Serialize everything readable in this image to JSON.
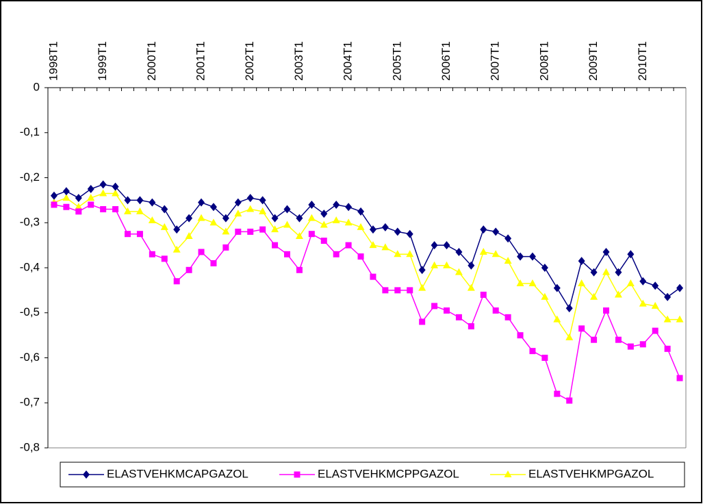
{
  "chart_data": {
    "type": "line",
    "categories": [
      "1998T1",
      null,
      null,
      null,
      "1999T1",
      null,
      null,
      null,
      "2000T1",
      null,
      null,
      null,
      "2001T1",
      null,
      null,
      null,
      "2002T1",
      null,
      null,
      null,
      "2003T1",
      null,
      null,
      null,
      "2004T1",
      null,
      null,
      null,
      "2005T1",
      null,
      null,
      null,
      "2006T1",
      null,
      null,
      null,
      "2007T1",
      null,
      null,
      null,
      "2008T1",
      null,
      null,
      null,
      "2009T1",
      null,
      null,
      null,
      "2010T1",
      null,
      null,
      null
    ],
    "series": [
      {
        "name": "ELASTVEHKMCAPGAZOL",
        "color": "#000080",
        "marker": "diamond",
        "values": [
          -0.24,
          -0.23,
          -0.245,
          -0.225,
          -0.215,
          -0.22,
          -0.25,
          -0.25,
          -0.255,
          -0.27,
          -0.315,
          -0.29,
          -0.255,
          -0.265,
          -0.29,
          -0.255,
          -0.245,
          -0.25,
          -0.29,
          -0.27,
          -0.29,
          -0.26,
          -0.28,
          -0.26,
          -0.265,
          -0.275,
          -0.315,
          -0.31,
          -0.32,
          -0.325,
          -0.405,
          -0.35,
          -0.35,
          -0.365,
          -0.395,
          -0.315,
          -0.32,
          -0.335,
          -0.375,
          -0.375,
          -0.4,
          -0.445,
          -0.49,
          -0.385,
          -0.41,
          -0.365,
          -0.41,
          -0.37,
          -0.43,
          -0.44,
          -0.465,
          -0.445
        ]
      },
      {
        "name": "ELASTVEHKMCPPGAZOL",
        "color": "#ff00ff",
        "marker": "square",
        "values": [
          -0.26,
          -0.265,
          -0.275,
          -0.26,
          -0.27,
          -0.27,
          -0.325,
          -0.325,
          -0.37,
          -0.38,
          -0.43,
          -0.405,
          -0.365,
          -0.39,
          -0.355,
          -0.32,
          -0.32,
          -0.315,
          -0.35,
          -0.37,
          -0.405,
          -0.325,
          -0.34,
          -0.37,
          -0.35,
          -0.375,
          -0.42,
          -0.45,
          -0.45,
          -0.45,
          -0.52,
          -0.485,
          -0.495,
          -0.51,
          -0.53,
          -0.46,
          -0.495,
          -0.51,
          -0.55,
          -0.585,
          -0.6,
          -0.68,
          -0.695,
          -0.535,
          -0.56,
          -0.495,
          -0.56,
          -0.575,
          -0.57,
          -0.54,
          -0.58,
          -0.645
        ]
      },
      {
        "name": "ELASTVEHKMPGAZOL",
        "color": "#ffff00",
        "marker": "triangle",
        "values": [
          -0.255,
          -0.245,
          -0.265,
          -0.245,
          -0.235,
          -0.235,
          -0.275,
          -0.275,
          -0.295,
          -0.31,
          -0.36,
          -0.33,
          -0.29,
          -0.3,
          -0.32,
          -0.28,
          -0.27,
          -0.275,
          -0.315,
          -0.305,
          -0.33,
          -0.29,
          -0.305,
          -0.295,
          -0.3,
          -0.31,
          -0.35,
          -0.355,
          -0.37,
          -0.37,
          -0.445,
          -0.395,
          -0.395,
          -0.41,
          -0.445,
          -0.365,
          -0.37,
          -0.385,
          -0.435,
          -0.435,
          -0.465,
          -0.515,
          -0.555,
          -0.435,
          -0.465,
          -0.41,
          -0.46,
          -0.435,
          -0.48,
          -0.485,
          -0.515,
          -0.515
        ]
      }
    ],
    "ylim": [
      -0.8,
      0
    ],
    "yticks": [
      0,
      {
        "value": -0.1,
        "label": "-0,1"
      },
      {
        "value": -0.2,
        "label": "-0,2"
      },
      {
        "value": -0.3,
        "label": "-0,3"
      },
      {
        "value": -0.4,
        "label": "-0,4"
      },
      {
        "value": -0.5,
        "label": "-0,5"
      },
      {
        "value": -0.6,
        "label": "-0,6"
      },
      {
        "value": -0.7,
        "label": "-0,7"
      },
      {
        "value": -0.8,
        "label": "-0,8"
      }
    ],
    "grid": false,
    "legend": "bottom"
  }
}
